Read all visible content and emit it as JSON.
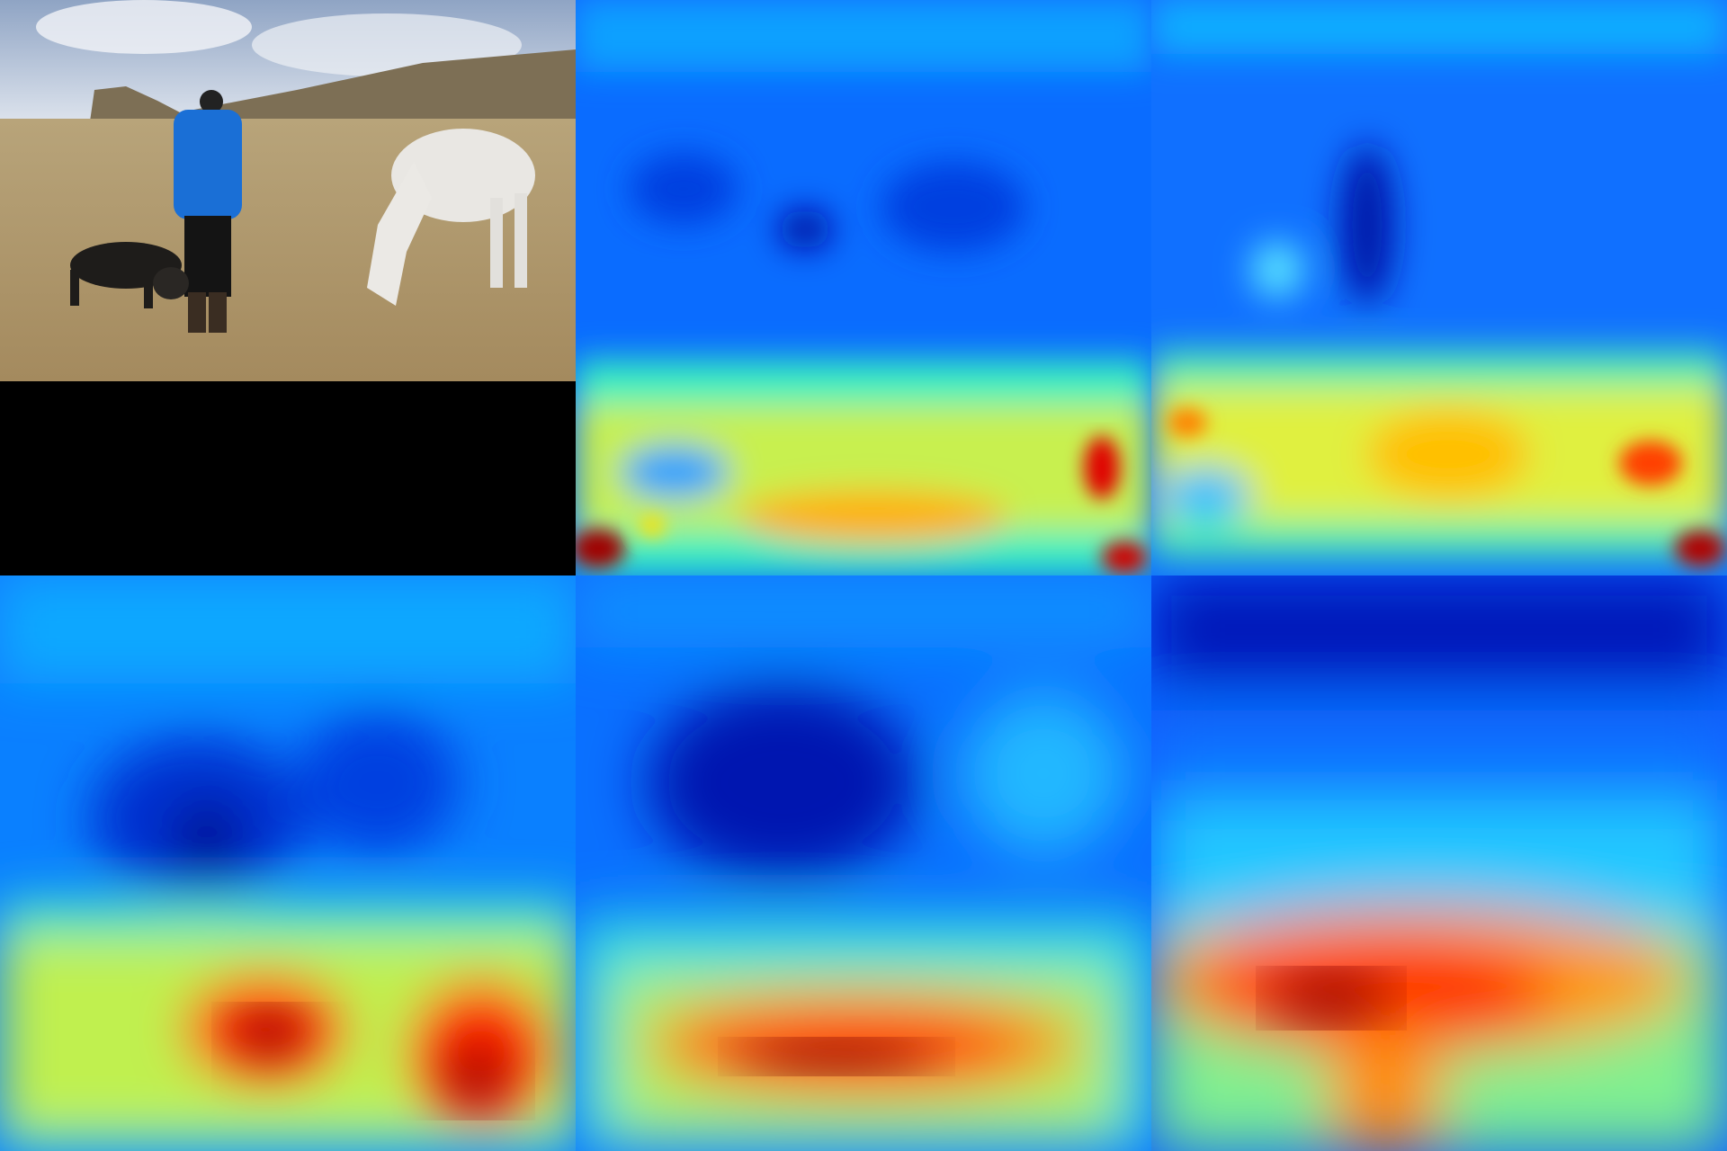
{
  "figure": {
    "layout": "2x3 grid",
    "panels": [
      {
        "kind": "photo",
        "subject": "person-dog-horse-field"
      },
      {
        "kind": "heatmap",
        "colormap": "jet"
      },
      {
        "kind": "heatmap",
        "colormap": "jet"
      },
      {
        "kind": "heatmap",
        "colormap": "jet"
      },
      {
        "kind": "heatmap",
        "colormap": "jet"
      },
      {
        "kind": "heatmap",
        "colormap": "jet"
      }
    ]
  },
  "colors": {
    "jet_low": "#00008f",
    "jet_blue": "#0050ff",
    "jet_cyan": "#00d8ff",
    "jet_yellow": "#ffe000",
    "jet_red": "#ff1000",
    "jet_high": "#800000",
    "letterbox": "#000000"
  }
}
